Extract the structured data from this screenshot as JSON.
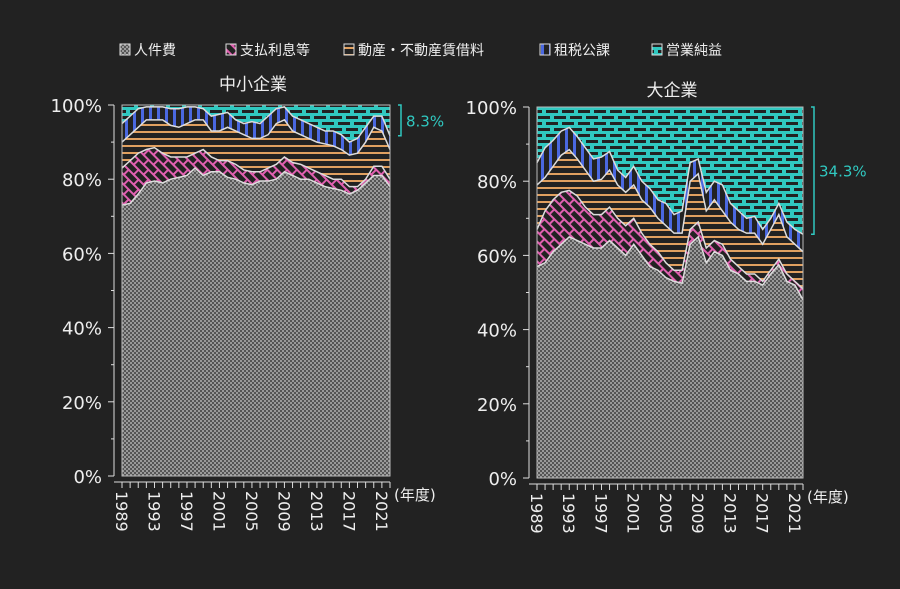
{
  "legend": [
    {
      "label": "人件費",
      "color": "#888888",
      "pattern": "checker"
    },
    {
      "label": "支払利息等",
      "color": "#e060b0",
      "pattern": "crosshatch"
    },
    {
      "label": "動産・不動産賃借料",
      "color": "#e0a060",
      "pattern": "horizontal"
    },
    {
      "label": "租税公課",
      "color": "#4060e0",
      "pattern": "vertical"
    },
    {
      "label": "営業純益",
      "color": "#30c8c0",
      "pattern": "brick"
    }
  ],
  "annotation_color": "#30c8c0",
  "chart_data": [
    {
      "type": "area",
      "stacked": true,
      "title": "中小企業",
      "xlabel": "(年度)",
      "ylim": [
        0,
        100
      ],
      "y_ticks": [
        "0%",
        "20%",
        "40%",
        "60%",
        "80%",
        "100%"
      ],
      "x_tick_labels": [
        "1989",
        "1993",
        "1997",
        "2001",
        "2005",
        "2009",
        "2013",
        "2017",
        "2021"
      ],
      "x": [
        1989,
        1990,
        1991,
        1992,
        1993,
        1994,
        1995,
        1996,
        1997,
        1998,
        1999,
        2000,
        2001,
        2002,
        2003,
        2004,
        2005,
        2006,
        2007,
        2008,
        2009,
        2010,
        2011,
        2012,
        2013,
        2014,
        2015,
        2016,
        2017,
        2018,
        2019,
        2020,
        2021,
        2022
      ],
      "series": [
        {
          "name": "人件費",
          "values": [
            73,
            73.5,
            76,
            79,
            79.5,
            79,
            80,
            80.5,
            81,
            83,
            81,
            82,
            82,
            80.5,
            80,
            79,
            78.5,
            79.5,
            79.5,
            80,
            82,
            81,
            80,
            80,
            79,
            78,
            77.5,
            77,
            76,
            77,
            79,
            81,
            81,
            78
          ]
        },
        {
          "name": "支払利息等",
          "values": [
            10,
            11.5,
            11,
            9,
            9,
            8,
            6,
            5.5,
            5,
            4,
            7,
            4,
            3,
            4.5,
            4,
            3.5,
            3.5,
            2.5,
            3.5,
            4,
            4,
            3.5,
            4,
            3,
            3,
            3,
            2.5,
            3,
            2,
            1,
            1,
            2.5,
            2.5,
            2
          ]
        },
        {
          "name": "動産・不動産賃借料",
          "values": [
            7,
            7,
            7,
            8,
            7.5,
            9,
            8.5,
            8,
            9,
            9,
            8,
            7,
            8,
            9,
            9,
            9.5,
            9,
            9,
            9,
            11,
            10,
            8.5,
            8,
            8,
            8,
            8.5,
            9,
            8,
            8.5,
            9,
            10,
            10.5,
            9.5,
            8
          ]
        },
        {
          "name": "租税公課",
          "values": [
            5,
            5,
            5,
            3.5,
            3.5,
            3.5,
            4.5,
            5,
            4.5,
            3.5,
            3,
            4,
            4.5,
            4,
            3,
            3,
            4.5,
            4,
            5,
            4,
            3.5,
            4,
            4,
            4,
            4,
            3.5,
            4,
            4,
            3.5,
            4,
            4,
            3,
            4,
            3.7
          ]
        },
        {
          "name": "営業純益",
          "values": [
            5,
            3,
            1,
            0.5,
            0.5,
            0.5,
            1,
            1,
            0.5,
            0.5,
            1,
            3,
            2.5,
            2,
            4,
            5,
            4.5,
            5,
            3,
            1,
            0.5,
            3,
            4,
            5,
            6,
            7,
            7,
            8,
            10,
            9,
            6,
            3,
            3,
            8.3
          ]
        }
      ],
      "annotation": "8.3%"
    },
    {
      "type": "area",
      "stacked": true,
      "title": "大企業",
      "xlabel": "(年度)",
      "ylim": [
        0,
        100
      ],
      "y_ticks": [
        "0%",
        "20%",
        "40%",
        "60%",
        "80%",
        "100%"
      ],
      "x_tick_labels": [
        "1989",
        "1993",
        "1997",
        "2001",
        "2005",
        "2009",
        "2013",
        "2017",
        "2021"
      ],
      "x": [
        1989,
        1990,
        1991,
        1992,
        1993,
        1994,
        1995,
        1996,
        1997,
        1998,
        1999,
        2000,
        2001,
        2002,
        2003,
        2004,
        2005,
        2006,
        2007,
        2008,
        2009,
        2010,
        2011,
        2012,
        2013,
        2014,
        2015,
        2016,
        2017,
        2018,
        2019,
        2020,
        2021,
        2022
      ],
      "series": [
        {
          "name": "人件費",
          "values": [
            57,
            58,
            61,
            63,
            65,
            64,
            63,
            62,
            62,
            64,
            62,
            60,
            63,
            60,
            57,
            56,
            54,
            53,
            52.5,
            63,
            65,
            58,
            61,
            60,
            56,
            55,
            53,
            53,
            52,
            55,
            57.5,
            53,
            52,
            48
          ]
        },
        {
          "name": "支払利息等",
          "values": [
            10,
            14,
            14,
            14,
            12.5,
            12,
            10,
            9,
            9,
            9,
            8,
            8,
            7,
            6,
            6,
            5,
            4,
            3,
            3.5,
            4,
            4,
            4,
            3,
            3,
            3,
            2,
            2,
            2,
            1,
            1,
            1.5,
            2,
            1,
            3
          ]
        },
        {
          "name": "動産・不動産賃借料",
          "values": [
            12,
            9,
            9,
            10,
            11,
            10,
            10,
            9,
            9.5,
            10,
            9,
            9,
            9,
            9,
            10,
            9,
            10,
            10,
            10,
            13,
            13,
            10,
            11,
            9,
            10,
            10,
            11,
            11,
            10,
            11,
            12,
            10,
            10,
            10
          ]
        },
        {
          "name": "租税公課",
          "values": [
            6,
            8,
            7,
            6.5,
            6,
            6,
            6,
            6,
            6,
            5,
            4,
            4,
            5,
            5,
            5,
            5,
            6,
            5,
            6,
            5,
            4,
            5,
            5,
            7,
            5,
            5,
            4,
            4.5,
            4,
            3,
            3,
            4,
            4,
            4.7
          ]
        },
        {
          "name": "営業純益",
          "values": [
            15,
            11,
            9,
            6.5,
            5.5,
            8,
            11,
            14,
            13.5,
            12,
            17,
            19,
            16,
            20,
            22,
            25,
            26,
            29,
            28,
            15,
            14,
            23,
            20,
            21,
            26,
            28,
            30,
            29.5,
            33,
            30,
            26,
            31,
            33,
            34.3
          ]
        }
      ],
      "annotation": "34.3%"
    }
  ]
}
